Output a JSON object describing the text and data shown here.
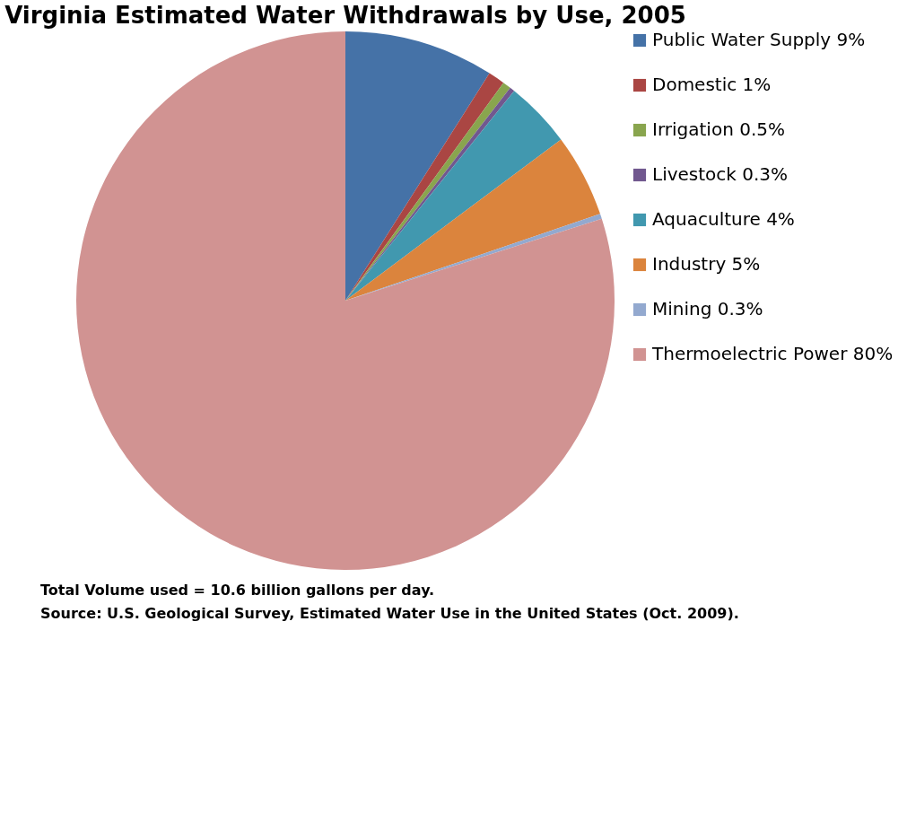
{
  "chart_data": {
    "type": "pie",
    "title": "Virginia Estimated Water Withdrawals by Use, 2005",
    "categories": [
      "Public Water Supply 9%",
      "Domestic 1%",
      "Irrigation 0.5%",
      "Livestock 0.3%",
      "Aquaculture 4%",
      "Industry 5%",
      "Mining 0.3%",
      "Thermoelectric Power 80%"
    ],
    "values": [
      9,
      1,
      0.5,
      0.3,
      4,
      5,
      0.3,
      80
    ],
    "colors": [
      "#4572a7",
      "#aa4643",
      "#89a54e",
      "#71588f",
      "#4198af",
      "#db843d",
      "#93a9cf",
      "#d19392"
    ],
    "legend": "right",
    "annotations": [
      "Total Volume used = 10.6 billion gallons per day.",
      "Source: U.S. Geological Survey, Estimated Water Use in the United States (Oct. 2009)."
    ]
  }
}
